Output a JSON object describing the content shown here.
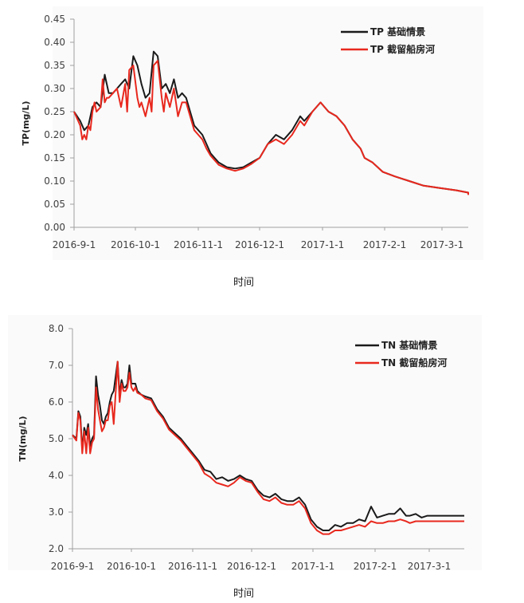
{
  "chart_data": [
    {
      "type": "line",
      "title": "",
      "xlabel": "时间",
      "ylabel": "TP(mg/L)",
      "ylim": [
        0,
        0.45
      ],
      "yticks": [
        "0.00",
        "0.05",
        "0.10",
        "0.15",
        "0.20",
        "0.25",
        "0.30",
        "0.35",
        "0.40",
        "0.45"
      ],
      "xticks": [
        "2016-9-1",
        "2016-10-1",
        "2016-11-1",
        "2016-12-1",
        "2017-1-1",
        "2017-2-1",
        "2017-3-1"
      ],
      "xlim_days": [
        0,
        200
      ],
      "legend_position": "top-right",
      "grid": false,
      "series": [
        {
          "name": "TP 基础情景",
          "color": "#1a1a1a",
          "x_days": [
            0,
            3,
            5,
            7,
            9,
            11,
            13,
            15,
            17,
            19,
            21,
            23,
            25,
            27,
            29,
            31,
            33,
            35,
            37,
            39,
            41,
            43,
            45,
            47,
            49,
            51,
            53,
            55,
            57,
            59,
            61,
            63,
            65,
            67,
            69,
            71,
            75,
            79,
            83,
            87,
            91,
            95,
            99,
            103,
            107,
            111,
            113,
            117,
            121,
            125,
            129,
            133,
            137,
            141,
            143,
            147,
            152,
            158,
            165,
            172,
            180,
            188,
            196,
            200
          ],
          "values": [
            0.25,
            0.23,
            0.21,
            0.22,
            0.26,
            0.27,
            0.26,
            0.33,
            0.29,
            0.29,
            0.3,
            0.31,
            0.32,
            0.3,
            0.37,
            0.35,
            0.31,
            0.28,
            0.29,
            0.38,
            0.37,
            0.3,
            0.31,
            0.29,
            0.32,
            0.28,
            0.29,
            0.28,
            0.25,
            0.22,
            0.21,
            0.2,
            0.18,
            0.16,
            0.15,
            0.14,
            0.13,
            0.127,
            0.13,
            0.14,
            0.15,
            0.18,
            0.2,
            0.19,
            0.21,
            0.24,
            0.23,
            0.25,
            0.27,
            0.25,
            0.24,
            0.22,
            0.19,
            0.17,
            0.15,
            0.14,
            0.12,
            0.11,
            0.1,
            0.09,
            0.085,
            0.08,
            0.075,
            0.072
          ]
        },
        {
          "name": "TP 截留船房河",
          "color": "#e8281e",
          "x_days": [
            0,
            3,
            4,
            5,
            6,
            7,
            8,
            9,
            10,
            11,
            13,
            14,
            15,
            16,
            17,
            19,
            21,
            23,
            25,
            26,
            27,
            29,
            31,
            32,
            33,
            35,
            37,
            38,
            39,
            41,
            43,
            44,
            45,
            47,
            49,
            51,
            53,
            55,
            57,
            59,
            61,
            63,
            65,
            67,
            69,
            71,
            75,
            79,
            83,
            87,
            91,
            95,
            99,
            103,
            107,
            111,
            113,
            117,
            121,
            125,
            129,
            133,
            137,
            141,
            143,
            147,
            152,
            158,
            165,
            172,
            180,
            188,
            196,
            200
          ],
          "values": [
            0.25,
            0.22,
            0.19,
            0.2,
            0.19,
            0.22,
            0.21,
            0.25,
            0.27,
            0.25,
            0.26,
            0.32,
            0.27,
            0.28,
            0.28,
            0.29,
            0.3,
            0.26,
            0.31,
            0.25,
            0.34,
            0.35,
            0.28,
            0.26,
            0.27,
            0.24,
            0.28,
            0.25,
            0.35,
            0.36,
            0.28,
            0.25,
            0.29,
            0.26,
            0.3,
            0.24,
            0.27,
            0.27,
            0.24,
            0.21,
            0.2,
            0.19,
            0.17,
            0.155,
            0.145,
            0.135,
            0.127,
            0.122,
            0.127,
            0.137,
            0.15,
            0.18,
            0.19,
            0.18,
            0.2,
            0.23,
            0.22,
            0.25,
            0.27,
            0.25,
            0.24,
            0.22,
            0.19,
            0.17,
            0.15,
            0.14,
            0.12,
            0.11,
            0.1,
            0.09,
            0.085,
            0.08,
            0.075,
            0.07
          ]
        }
      ]
    },
    {
      "type": "line",
      "title": "",
      "xlabel": "时间",
      "ylabel": "TN(mg/L)",
      "ylim": [
        2.0,
        8.0
      ],
      "yticks": [
        "2.0",
        "3.0",
        "4.0",
        "5.0",
        "6.0",
        "7.0",
        "8.0"
      ],
      "xticks": [
        "2016-9-1",
        "2016-10-1",
        "2016-11-1",
        "2016-12-1",
        "2017-1-1",
        "2017-2-1",
        "2017-3-1"
      ],
      "xlim_days": [
        0,
        200
      ],
      "legend_position": "top-right",
      "grid": false,
      "series": [
        {
          "name": "TN 基础情景",
          "color": "#1a1a1a",
          "x_days": [
            0,
            2,
            3,
            4,
            5,
            6,
            7,
            8,
            9,
            10,
            11,
            12,
            13,
            14,
            15,
            16,
            17,
            18,
            19,
            20,
            21,
            23,
            24,
            25,
            26,
            27,
            28,
            29,
            30,
            31,
            32,
            33,
            35,
            37,
            40,
            43,
            46,
            49,
            52,
            55,
            58,
            61,
            64,
            67,
            70,
            73,
            76,
            79,
            82,
            85,
            88,
            91,
            94,
            97,
            100,
            103,
            106,
            109,
            112,
            115,
            118,
            121,
            124,
            127,
            130,
            133,
            136,
            139,
            142,
            145,
            148,
            151,
            154,
            157,
            160,
            163,
            166,
            169,
            171,
            174,
            177,
            180,
            183,
            186,
            189,
            192,
            195,
            198,
            200
          ],
          "values": [
            5.1,
            5.0,
            5.75,
            5.6,
            4.7,
            5.3,
            5.1,
            5.4,
            4.8,
            5.0,
            5.1,
            6.7,
            6.2,
            5.9,
            5.5,
            5.4,
            5.6,
            5.7,
            6.0,
            6.2,
            6.3,
            7.1,
            6.2,
            6.6,
            6.4,
            6.4,
            6.5,
            7.0,
            6.5,
            6.5,
            6.5,
            6.3,
            6.2,
            6.15,
            6.1,
            5.8,
            5.6,
            5.3,
            5.15,
            5.0,
            4.8,
            4.6,
            4.4,
            4.15,
            4.1,
            3.9,
            3.95,
            3.85,
            3.9,
            4.0,
            3.9,
            3.85,
            3.6,
            3.45,
            3.4,
            3.5,
            3.35,
            3.3,
            3.3,
            3.4,
            3.2,
            2.8,
            2.6,
            2.5,
            2.5,
            2.65,
            2.6,
            2.7,
            2.7,
            2.8,
            2.75,
            3.15,
            2.85,
            2.9,
            2.95,
            2.95,
            3.1,
            2.9,
            2.9,
            2.95,
            2.85,
            2.9,
            2.9,
            2.9,
            2.9,
            2.9,
            2.9,
            2.9,
            2.9
          ]
        },
        {
          "name": "TN 截留船房河",
          "color": "#e8281e",
          "x_days": [
            0,
            2,
            3,
            4,
            5,
            6,
            7,
            8,
            9,
            10,
            11,
            12,
            13,
            14,
            15,
            16,
            17,
            18,
            19,
            20,
            21,
            23,
            24,
            25,
            26,
            27,
            28,
            29,
            30,
            31,
            32,
            33,
            35,
            37,
            40,
            43,
            46,
            49,
            52,
            55,
            58,
            61,
            64,
            67,
            70,
            73,
            76,
            79,
            82,
            85,
            88,
            91,
            94,
            97,
            100,
            103,
            106,
            109,
            112,
            115,
            118,
            121,
            124,
            127,
            130,
            133,
            136,
            139,
            142,
            145,
            148,
            151,
            154,
            157,
            160,
            163,
            166,
            169,
            171,
            174,
            177,
            180,
            183,
            186,
            189,
            192,
            195,
            198,
            200
          ],
          "values": [
            5.1,
            4.95,
            5.7,
            5.5,
            4.6,
            5.2,
            4.6,
            5.3,
            4.6,
            4.9,
            5.0,
            6.4,
            5.8,
            5.5,
            5.2,
            5.3,
            5.5,
            5.5,
            5.9,
            6.0,
            5.4,
            7.1,
            6.0,
            6.5,
            6.3,
            6.3,
            6.4,
            6.8,
            6.4,
            6.3,
            6.4,
            6.25,
            6.2,
            6.1,
            6.05,
            5.75,
            5.55,
            5.25,
            5.1,
            4.95,
            4.75,
            4.55,
            4.35,
            4.05,
            3.95,
            3.8,
            3.75,
            3.7,
            3.8,
            3.95,
            3.85,
            3.8,
            3.55,
            3.35,
            3.3,
            3.4,
            3.25,
            3.2,
            3.2,
            3.3,
            3.1,
            2.7,
            2.5,
            2.4,
            2.4,
            2.5,
            2.5,
            2.55,
            2.6,
            2.65,
            2.6,
            2.75,
            2.7,
            2.7,
            2.75,
            2.75,
            2.8,
            2.75,
            2.7,
            2.75,
            2.75,
            2.75,
            2.75,
            2.75,
            2.75,
            2.75,
            2.75,
            2.75,
            2.75
          ]
        }
      ]
    }
  ]
}
